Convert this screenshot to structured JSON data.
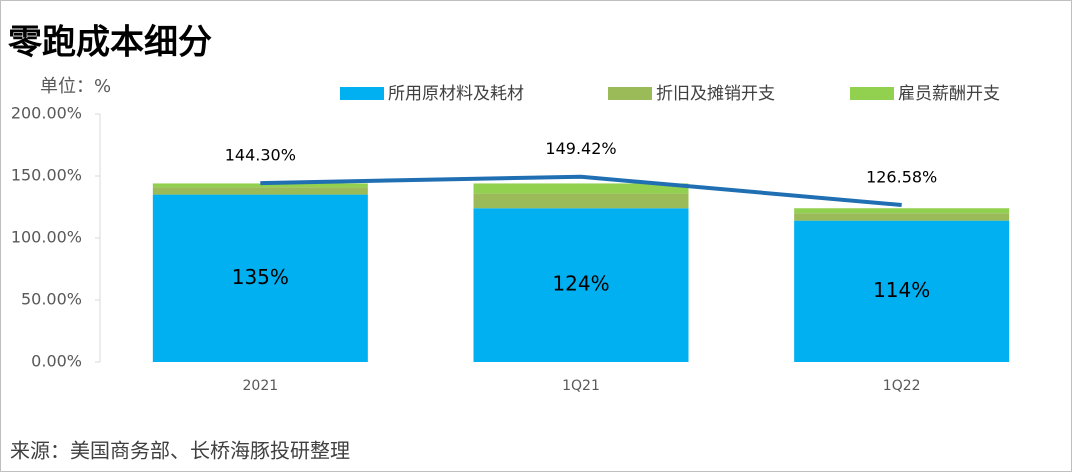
{
  "chart_data": {
    "type": "bar",
    "title": "零跑成本细分",
    "unit_label": "单位：%",
    "source": "来源：美国商务部、长桥海豚投研整理",
    "categories": [
      "2021",
      "1Q21",
      "1Q22"
    ],
    "series": [
      {
        "name": "所用原材料及耗材",
        "color": "#00b0f0",
        "values": [
          135,
          124,
          114
        ],
        "value_labels": [
          "135%",
          "124%",
          "114%"
        ]
      },
      {
        "name": "折旧及摊销开支",
        "color": "#9bbb59",
        "values": [
          6,
          12,
          6
        ]
      },
      {
        "name": "雇员薪酬开支",
        "color": "#92d050",
        "values": [
          3,
          8,
          4
        ]
      }
    ],
    "line": {
      "type": "line",
      "color": "#1f6fb2",
      "values": [
        144.3,
        149.42,
        126.58
      ],
      "value_labels": [
        "144.30%",
        "149.42%",
        "126.58%"
      ]
    },
    "ylim": [
      0,
      200
    ],
    "yticks": [
      {
        "value": 0,
        "label": "0.00%"
      },
      {
        "value": 50,
        "label": "50.00%"
      },
      {
        "value": 100,
        "label": "100.00%"
      },
      {
        "value": 150,
        "label": "150.00%"
      },
      {
        "value": 200,
        "label": "200.00%"
      }
    ]
  }
}
